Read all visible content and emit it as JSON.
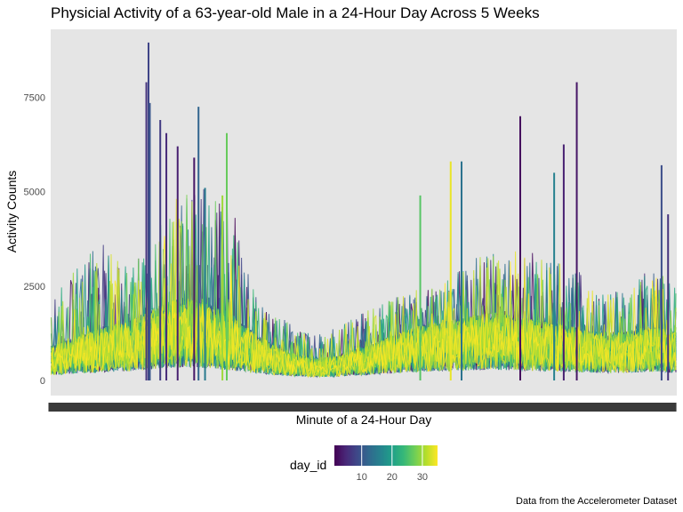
{
  "chart_data": {
    "type": "line",
    "title": "Physicial Activity of a 63-year-old Male in a 24-Hour Day Across 5 Weeks",
    "xlabel": "Minute of a 24-Hour Day",
    "ylabel": "Activity Counts",
    "caption": "Data from the Accelerometer Dataset",
    "x_range": [
      1,
      1440
    ],
    "ylim": [
      -400,
      9300
    ],
    "y_ticks": [
      0,
      2500,
      5000,
      7500
    ],
    "y_tick_labels": [
      "0",
      "2500",
      "5000",
      "7500"
    ],
    "x_tick_labels": "overplotted (one label per minute, illegible)",
    "legend": {
      "title": "day_id",
      "range": [
        1,
        35
      ],
      "ticks": [
        10,
        20,
        30
      ],
      "tick_labels": [
        "10",
        "20",
        "30"
      ],
      "colormap": "viridis",
      "placement": "bottom"
    },
    "background": "#e5e5e5",
    "grid": false,
    "series_count": 35,
    "series_color_by": "day_id",
    "activity_profile": [
      {
        "minute": 0,
        "typical": 700,
        "peak": 2100
      },
      {
        "minute": 60,
        "typical": 900,
        "peak": 3000
      },
      {
        "minute": 120,
        "typical": 1100,
        "peak": 3700
      },
      {
        "minute": 180,
        "typical": 1200,
        "peak": 3000
      },
      {
        "minute": 240,
        "typical": 1500,
        "peak": 4000
      },
      {
        "minute": 300,
        "typical": 1700,
        "peak": 5000
      },
      {
        "minute": 360,
        "typical": 1600,
        "peak": 5200
      },
      {
        "minute": 420,
        "typical": 1300,
        "peak": 4500
      },
      {
        "minute": 480,
        "typical": 900,
        "peak": 2000
      },
      {
        "minute": 540,
        "typical": 600,
        "peak": 1600
      },
      {
        "minute": 600,
        "typical": 450,
        "peak": 1200
      },
      {
        "minute": 660,
        "typical": 500,
        "peak": 1400
      },
      {
        "minute": 720,
        "typical": 700,
        "peak": 1800
      },
      {
        "minute": 780,
        "typical": 900,
        "peak": 2200
      },
      {
        "minute": 840,
        "typical": 1100,
        "peak": 2400
      },
      {
        "minute": 900,
        "typical": 1200,
        "peak": 2500
      },
      {
        "minute": 960,
        "typical": 1300,
        "peak": 3200
      },
      {
        "minute": 1020,
        "typical": 1400,
        "peak": 3500
      },
      {
        "minute": 1080,
        "typical": 1300,
        "peak": 3500
      },
      {
        "minute": 1140,
        "typical": 1200,
        "peak": 3300
      },
      {
        "minute": 1200,
        "typical": 1100,
        "peak": 3000
      },
      {
        "minute": 1260,
        "typical": 1000,
        "peak": 2500
      },
      {
        "minute": 1320,
        "typical": 1000,
        "peak": 2300
      },
      {
        "minute": 1380,
        "typical": 1100,
        "peak": 3000
      },
      {
        "minute": 1440,
        "typical": 1000,
        "peak": 2500
      }
    ],
    "notable_peaks": [
      {
        "minute": 225,
        "value": 8950,
        "day_id": 8
      },
      {
        "minute": 220,
        "value": 7900,
        "day_id": 6
      },
      {
        "minute": 228,
        "value": 7350,
        "day_id": 10
      },
      {
        "minute": 252,
        "value": 6900,
        "day_id": 7
      },
      {
        "minute": 266,
        "value": 6550,
        "day_id": 5
      },
      {
        "minute": 292,
        "value": 6200,
        "day_id": 4
      },
      {
        "minute": 340,
        "value": 7250,
        "day_id": 12
      },
      {
        "minute": 330,
        "value": 5900,
        "day_id": 3
      },
      {
        "minute": 355,
        "value": 5100,
        "day_id": 15
      },
      {
        "minute": 405,
        "value": 6550,
        "day_id": 27
      },
      {
        "minute": 395,
        "value": 4900,
        "day_id": 30
      },
      {
        "minute": 850,
        "value": 4900,
        "day_id": 26
      },
      {
        "minute": 920,
        "value": 5800,
        "day_id": 34
      },
      {
        "minute": 945,
        "value": 5800,
        "day_id": 14
      },
      {
        "minute": 1080,
        "value": 7000,
        "day_id": 2
      },
      {
        "minute": 1158,
        "value": 5500,
        "day_id": 16
      },
      {
        "minute": 1180,
        "value": 6250,
        "day_id": 4
      },
      {
        "minute": 1210,
        "value": 7900,
        "day_id": 3
      },
      {
        "minute": 1405,
        "value": 5700,
        "day_id": 9
      },
      {
        "minute": 1420,
        "value": 4400,
        "day_id": 6
      }
    ]
  }
}
